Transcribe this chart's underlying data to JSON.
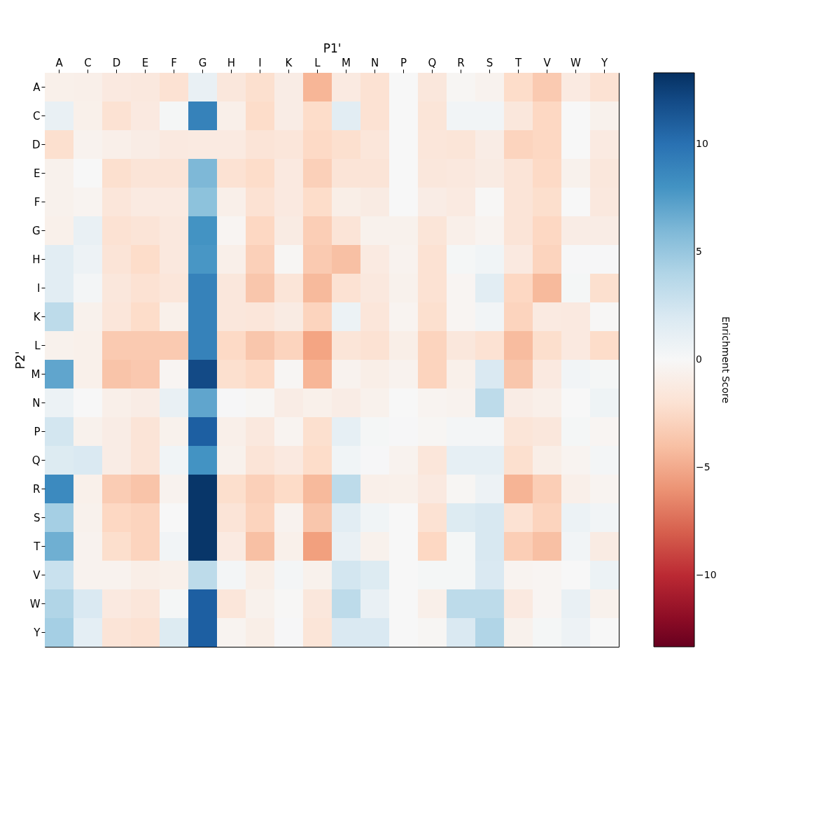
{
  "chart_data": {
    "type": "heatmap",
    "xlabel": "P1'",
    "ylabel": "P2'",
    "clabel": "Enrichment Score",
    "categories": [
      "A",
      "C",
      "D",
      "E",
      "F",
      "G",
      "H",
      "I",
      "K",
      "L",
      "M",
      "N",
      "P",
      "Q",
      "R",
      "S",
      "T",
      "V",
      "W",
      "Y"
    ],
    "y_categories": [
      "A",
      "C",
      "D",
      "E",
      "F",
      "G",
      "H",
      "I",
      "K",
      "L",
      "M",
      "N",
      "P",
      "Q",
      "R",
      "S",
      "T",
      "V",
      "W",
      "Y"
    ],
    "clim": [
      -13.3,
      13.3
    ],
    "cticks": [
      -10,
      -5,
      0,
      5,
      10
    ],
    "grid": false,
    "cells": [
      [
        -0.7,
        -0.8,
        -1.3,
        -1.4,
        -2,
        1,
        -1.5,
        -2.2,
        -1,
        -4.5,
        -1.2,
        -2,
        0,
        -1.5,
        -0.2,
        -0.5,
        -2.5,
        -3.5,
        -1.2,
        -2
      ],
      [
        1,
        -0.7,
        -2,
        -1.3,
        0.2,
        9,
        -0.8,
        -2.5,
        -1,
        -2.5,
        1.5,
        -2,
        0,
        -1.7,
        0.4,
        0.4,
        -1.5,
        -2.8,
        0,
        -0.6
      ],
      [
        -2.2,
        -0.5,
        -0.8,
        -1,
        -1.3,
        -1.2,
        -1.2,
        -1.8,
        -1.6,
        -2.7,
        -2.2,
        -1.6,
        0,
        -1.6,
        -1.7,
        -1,
        -3,
        -2.8,
        0,
        -1.2
      ],
      [
        -0.6,
        0,
        -2.2,
        -1.8,
        -1.8,
        6,
        -2,
        -2.5,
        -1.3,
        -3.2,
        -1.8,
        -1.8,
        0,
        -1.5,
        -1.4,
        -1.1,
        -1.8,
        -2.7,
        -0.6,
        -1.5
      ],
      [
        -0.6,
        -0.4,
        -1.6,
        -1.2,
        -1.2,
        5.5,
        -0.8,
        -2,
        -1.3,
        -2.5,
        -0.9,
        -1.1,
        0,
        -1,
        -1.2,
        -0.1,
        -1.8,
        -2.3,
        0,
        -1.4
      ],
      [
        -0.7,
        1,
        -2,
        -1.8,
        -1.4,
        8,
        -0.3,
        -2.8,
        -1.1,
        -3.3,
        -1.8,
        -0.6,
        -0.6,
        -1.7,
        -0.8,
        -0.4,
        -1.8,
        -2.8,
        -1,
        -1
      ],
      [
        1.5,
        0.7,
        -1.8,
        -2.5,
        -1.4,
        7.8,
        -0.8,
        -3.2,
        -0.2,
        -3.5,
        -4,
        -1.2,
        -0.5,
        -2,
        0.2,
        0.5,
        -1.3,
        -3,
        0.1,
        0.1
      ],
      [
        1.5,
        0.3,
        -1.5,
        -2,
        -1.6,
        9,
        -1.5,
        -3.7,
        -1.7,
        -4.3,
        -2,
        -1.4,
        -0.6,
        -2,
        -0.3,
        1.5,
        -2.8,
        -4.3,
        0.2,
        -2.2
      ],
      [
        3.5,
        -0.6,
        -1.6,
        -2.5,
        -0.7,
        9,
        -1.5,
        -1.6,
        -1.1,
        -3,
        0.8,
        -1.6,
        -0.4,
        -2.2,
        -0.3,
        0.4,
        -3,
        -1.2,
        -1.3,
        -0.1
      ],
      [
        -0.6,
        -0.7,
        -3.5,
        -3.5,
        -3.5,
        9,
        -2.7,
        -3.7,
        -3,
        -5.3,
        -1.7,
        -2,
        -0.9,
        -3,
        -1.5,
        -2,
        -4.2,
        -2.3,
        -1.3,
        -2.5
      ],
      [
        7,
        -0.7,
        -3.8,
        -3.6,
        -0.3,
        12,
        -2.2,
        -2.7,
        -0.2,
        -4.5,
        -0.5,
        -0.9,
        -0.5,
        -3,
        -0.7,
        2,
        -3.7,
        -1.3,
        0.4,
        0.2
      ],
      [
        0.8,
        0,
        -0.8,
        -1,
        1,
        7,
        0.1,
        -0.2,
        -1,
        -0.7,
        -1,
        -0.6,
        0,
        -0.4,
        -0.5,
        3.5,
        -1,
        -0.8,
        0,
        0.6
      ],
      [
        2.5,
        -0.6,
        -1,
        -1.8,
        -0.6,
        11,
        -0.8,
        -1.4,
        -0.4,
        -2.2,
        1.2,
        0.2,
        0.1,
        -0.2,
        0.3,
        0.3,
        -1.7,
        -1.5,
        0.2,
        -0.3
      ],
      [
        1.8,
        2,
        -1,
        -1.8,
        0.5,
        8,
        -0.6,
        -1.8,
        -1.3,
        -2.5,
        0.5,
        0.1,
        -0.5,
        -1.6,
        1.2,
        1.2,
        -2.2,
        -0.9,
        -0.4,
        0.3
      ],
      [
        8.5,
        -0.7,
        -3.4,
        -3.8,
        -0.5,
        13,
        -2.3,
        -3.2,
        -2.6,
        -4.3,
        3.5,
        -0.8,
        -0.7,
        -1.3,
        -0.2,
        0.7,
        -4.6,
        -3.3,
        -0.8,
        -0.4
      ],
      [
        4.5,
        -0.6,
        -2.8,
        -3,
        0,
        13,
        -1.8,
        -3,
        -0.5,
        -3.7,
        1.5,
        0.5,
        0,
        -2,
        1.8,
        2.2,
        -2,
        -3,
        0.8,
        0.4
      ],
      [
        6.5,
        -0.5,
        -2.3,
        -3,
        0.4,
        13,
        -1.2,
        -4,
        -0.7,
        -5.5,
        1,
        -0.6,
        0,
        -2.8,
        0.2,
        2.2,
        -3.3,
        -4,
        0.4,
        -1.1
      ],
      [
        3,
        -0.5,
        -0.5,
        -0.9,
        -0.7,
        3.5,
        0.3,
        -0.9,
        0.3,
        -0.6,
        2.5,
        1.8,
        0,
        0.2,
        0.2,
        2,
        -0.4,
        -0.3,
        0,
        0.8
      ],
      [
        4,
        2,
        -1.3,
        -1.6,
        0.2,
        11,
        -1.6,
        -0.6,
        -0.1,
        -1.5,
        3.5,
        1,
        0,
        -0.8,
        3.5,
        3.5,
        -1.3,
        -0.3,
        1,
        -0.6
      ],
      [
        4.5,
        1.3,
        -1.8,
        -2,
        1.8,
        11,
        -0.4,
        -0.9,
        0.1,
        -1.7,
        2,
        2,
        0,
        -0.2,
        2,
        4,
        -0.6,
        0.2,
        0.7,
        0
      ]
    ]
  }
}
